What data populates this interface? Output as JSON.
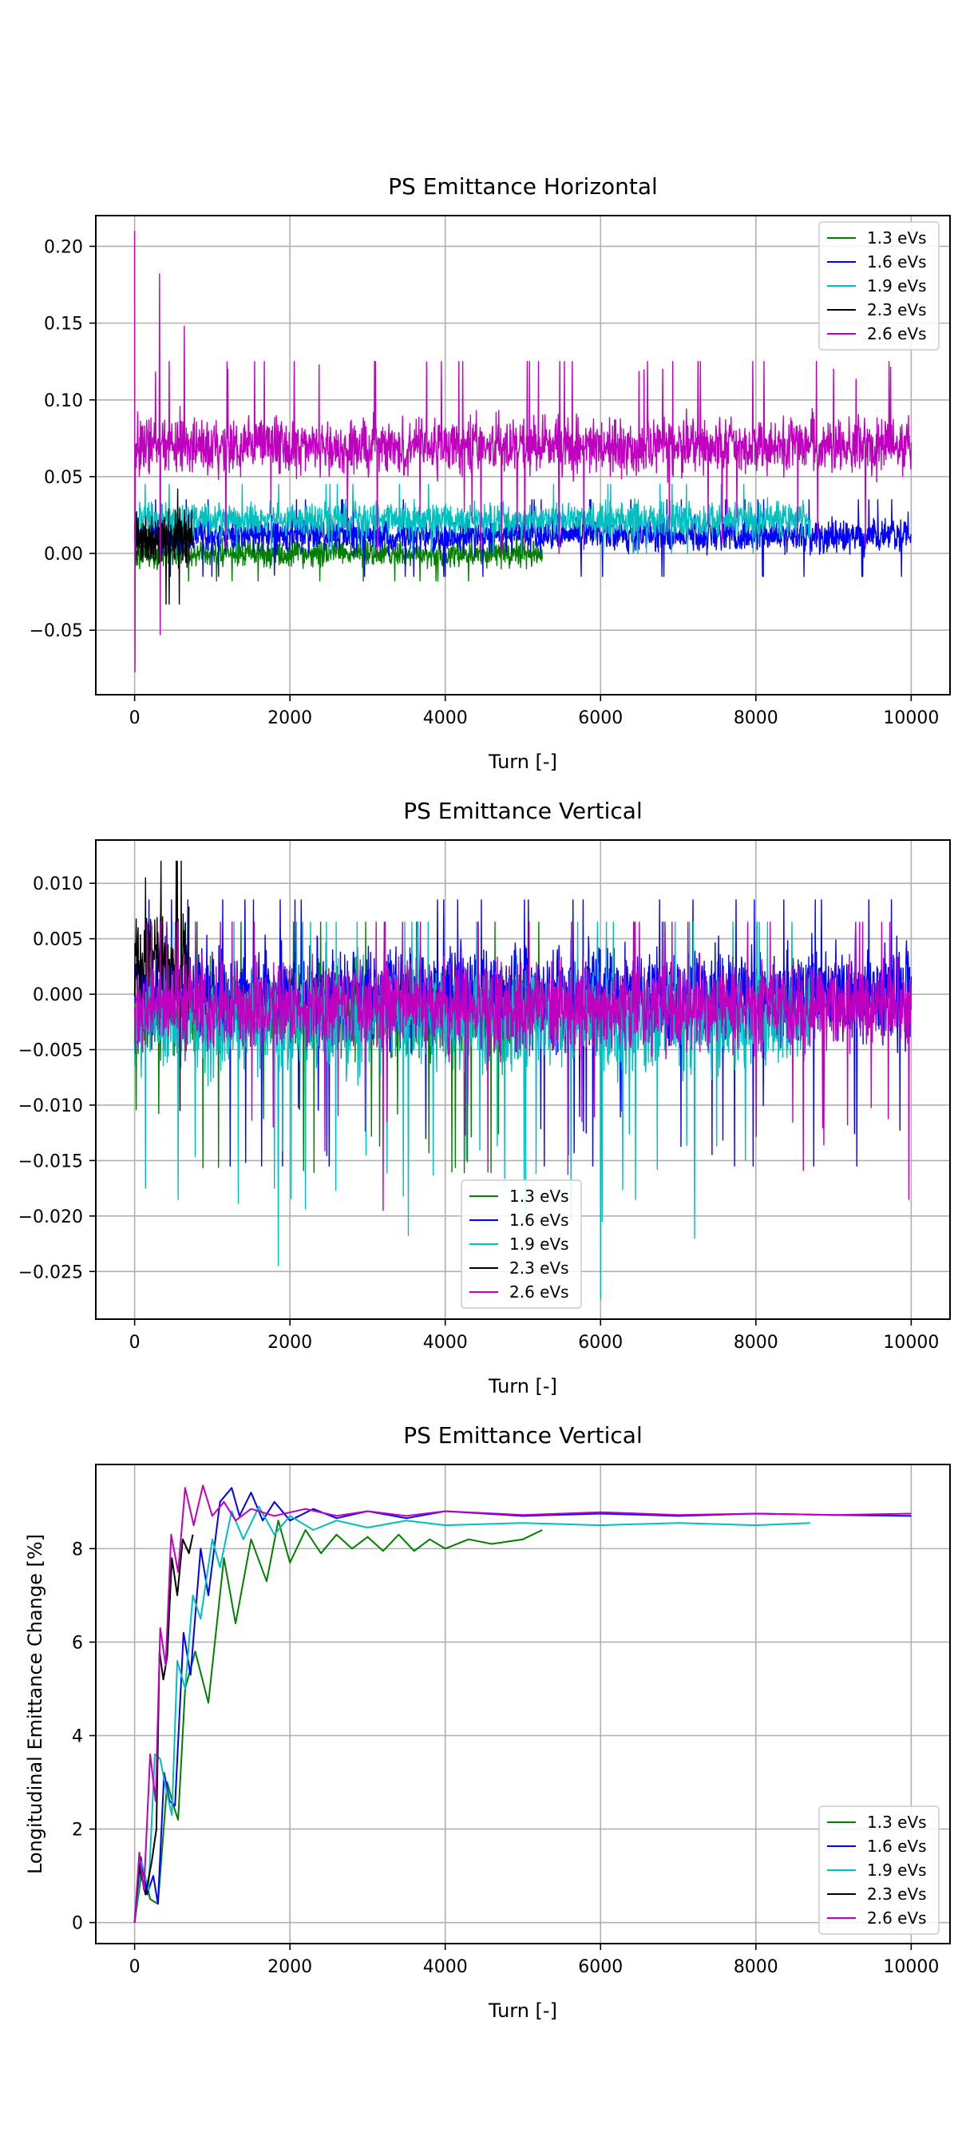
{
  "chart_data": [
    {
      "type": "line",
      "title": "PS Emittance Horizontal",
      "xlabel": "Turn [-]",
      "ylabel": "",
      "xlim": [
        -500,
        10500
      ],
      "ylim": [
        -0.092,
        0.22
      ],
      "xticks": [
        0,
        2000,
        4000,
        6000,
        8000,
        10000
      ],
      "xtick_labels": [
        "0",
        "2000",
        "4000",
        "6000",
        "8000",
        "10000"
      ],
      "yticks": [
        -0.05,
        0.0,
        0.05,
        0.1,
        0.15,
        0.2
      ],
      "ytick_labels": [
        "−0.05",
        "0.00",
        "0.05",
        "0.10",
        "0.15",
        "0.20"
      ],
      "grid": true,
      "legend_position": "top-right",
      "series": [
        {
          "name": "1.3 eVs",
          "color": "#008000",
          "x_end": 5250,
          "noise": {
            "baseline": 0.0,
            "amplitude": 0.008,
            "min": -0.018,
            "max": 0.025
          }
        },
        {
          "name": "1.6 eVs",
          "color": "#0000ff",
          "x_end": 10000,
          "noise": {
            "baseline": 0.012,
            "amplitude": 0.01,
            "min": -0.015,
            "max": 0.035
          }
        },
        {
          "name": "1.9 eVs",
          "color": "#00bfbf",
          "x_end": 8700,
          "noise": {
            "baseline": 0.022,
            "amplitude": 0.01,
            "min": 0.0,
            "max": 0.045
          }
        },
        {
          "name": "2.3 eVs",
          "color": "#000000",
          "x_end": 750,
          "noise": {
            "baseline": 0.01,
            "amplitude": 0.018,
            "min": -0.033,
            "max": 0.042
          }
        },
        {
          "name": "2.6 eVs",
          "color": "#bf00bf",
          "x_end": 10000,
          "noise": {
            "baseline": 0.07,
            "amplitude": 0.017,
            "min": 0.0,
            "max": 0.125
          },
          "peaks": [
            [
              0,
              0.21
            ],
            [
              5,
              -0.077
            ],
            [
              320,
              0.182
            ],
            [
              330,
              -0.053
            ],
            [
              640,
              0.148
            ],
            [
              1200,
              0.12
            ],
            [
              3100,
              0.125
            ],
            [
              5200,
              0.125
            ],
            [
              6800,
              0.12
            ],
            [
              9000,
              0.12
            ]
          ]
        }
      ]
    },
    {
      "type": "line",
      "title": "PS Emittance Vertical",
      "xlabel": "Turn [-]",
      "ylabel": "",
      "xlim": [
        -500,
        10500
      ],
      "ylim": [
        -0.0293,
        0.0139
      ],
      "xticks": [
        0,
        2000,
        4000,
        6000,
        8000,
        10000
      ],
      "xtick_labels": [
        "0",
        "2000",
        "4000",
        "6000",
        "8000",
        "10000"
      ],
      "yticks": [
        -0.025,
        -0.02,
        -0.015,
        -0.01,
        -0.005,
        0.0,
        0.005,
        0.01
      ],
      "ytick_labels": [
        "−0.025",
        "−0.020",
        "−0.015",
        "−0.010",
        "−0.005",
        "0.000",
        "0.005",
        "0.010"
      ],
      "grid": true,
      "legend_position": "lower-center",
      "series": [
        {
          "name": "1.3 eVs",
          "color": "#008000",
          "x_end": 5250,
          "noise": {
            "baseline": -0.0015,
            "amplitude": 0.0035,
            "min": -0.0165,
            "max": 0.0065
          }
        },
        {
          "name": "1.6 eVs",
          "color": "#0000ff",
          "x_end": 10000,
          "noise": {
            "baseline": 0.0,
            "amplitude": 0.004,
            "min": -0.0155,
            "max": 0.0085
          }
        },
        {
          "name": "1.9 eVs",
          "color": "#00bfbf",
          "x_end": 8700,
          "noise": {
            "baseline": -0.0025,
            "amplitude": 0.004,
            "min": -0.0275,
            "max": 0.0065
          },
          "peaks": [
            [
              1850,
              -0.0245
            ],
            [
              6000,
              -0.0275
            ],
            [
              6020,
              -0.0205
            ],
            [
              140,
              -0.0175
            ],
            [
              560,
              -0.0185
            ],
            [
              6450,
              -0.0185
            ]
          ]
        },
        {
          "name": "2.3 eVs",
          "color": "#000000",
          "x_end": 700,
          "noise": {
            "baseline": 0.003,
            "amplitude": 0.004,
            "min": -0.016,
            "max": 0.012
          },
          "peaks": [
            [
              600,
              0.012
            ],
            [
              140,
              0.0105
            ]
          ]
        },
        {
          "name": "2.6 eVs",
          "color": "#bf00bf",
          "x_end": 10000,
          "noise": {
            "baseline": -0.001,
            "amplitude": 0.0035,
            "min": -0.0195,
            "max": 0.0065
          },
          "peaks": [
            [
              3200,
              -0.0195
            ],
            [
              9970,
              -0.0185
            ]
          ]
        }
      ]
    },
    {
      "type": "line",
      "title": "PS Emittance Vertical",
      "xlabel": "Turn [-]",
      "ylabel": "Longitudinal Emittance Change [%]",
      "xlim": [
        -500,
        10500
      ],
      "ylim": [
        -0.45,
        9.8
      ],
      "xticks": [
        0,
        2000,
        4000,
        6000,
        8000,
        10000
      ],
      "xtick_labels": [
        "0",
        "2000",
        "4000",
        "6000",
        "8000",
        "10000"
      ],
      "yticks": [
        0,
        2,
        4,
        6,
        8
      ],
      "ytick_labels": [
        "0",
        "2",
        "4",
        "6",
        "8"
      ],
      "grid": true,
      "legend_position": "lower-right",
      "series": [
        {
          "name": "1.3 eVs",
          "color": "#008000",
          "x_end": 5250,
          "points": [
            [
              0,
              0
            ],
            [
              100,
              1.2
            ],
            [
              200,
              0.5
            ],
            [
              300,
              0.4
            ],
            [
              420,
              3.0
            ],
            [
              500,
              2.5
            ],
            [
              560,
              2.2
            ],
            [
              650,
              5.0
            ],
            [
              780,
              5.8
            ],
            [
              950,
              4.7
            ],
            [
              1150,
              7.8
            ],
            [
              1300,
              6.4
            ],
            [
              1500,
              8.2
            ],
            [
              1700,
              7.3
            ],
            [
              1850,
              8.6
            ],
            [
              2000,
              7.7
            ],
            [
              2200,
              8.4
            ],
            [
              2400,
              7.9
            ],
            [
              2600,
              8.3
            ],
            [
              2800,
              8.0
            ],
            [
              3000,
              8.25
            ],
            [
              3200,
              7.95
            ],
            [
              3400,
              8.3
            ],
            [
              3600,
              7.95
            ],
            [
              3800,
              8.2
            ],
            [
              4000,
              8.0
            ],
            [
              4300,
              8.2
            ],
            [
              4600,
              8.1
            ],
            [
              5000,
              8.2
            ],
            [
              5250,
              8.4
            ]
          ]
        },
        {
          "name": "1.6 eVs",
          "color": "#0000ff",
          "x_end": 10000,
          "points": [
            [
              0,
              0
            ],
            [
              80,
              1.4
            ],
            [
              160,
              0.6
            ],
            [
              240,
              1.0
            ],
            [
              300,
              0.4
            ],
            [
              380,
              3.2
            ],
            [
              450,
              2.6
            ],
            [
              520,
              2.5
            ],
            [
              630,
              6.2
            ],
            [
              720,
              5.3
            ],
            [
              850,
              8.0
            ],
            [
              950,
              7.0
            ],
            [
              1100,
              9.0
            ],
            [
              1250,
              9.3
            ],
            [
              1350,
              8.7
            ],
            [
              1500,
              9.2
            ],
            [
              1650,
              8.6
            ],
            [
              1800,
              9.0
            ],
            [
              2000,
              8.6
            ],
            [
              2300,
              8.85
            ],
            [
              2600,
              8.65
            ],
            [
              3000,
              8.8
            ],
            [
              3500,
              8.65
            ],
            [
              4000,
              8.8
            ],
            [
              5000,
              8.7
            ],
            [
              6000,
              8.75
            ],
            [
              7000,
              8.7
            ],
            [
              8000,
              8.75
            ],
            [
              9000,
              8.72
            ],
            [
              10000,
              8.7
            ]
          ]
        },
        {
          "name": "1.9 eVs",
          "color": "#00bfbf",
          "x_end": 8700,
          "points": [
            [
              0,
              0
            ],
            [
              90,
              1.3
            ],
            [
              180,
              0.7
            ],
            [
              260,
              3.6
            ],
            [
              330,
              3.5
            ],
            [
              400,
              2.9
            ],
            [
              480,
              2.3
            ],
            [
              550,
              5.6
            ],
            [
              650,
              5.0
            ],
            [
              750,
              7.0
            ],
            [
              850,
              6.5
            ],
            [
              1000,
              8.2
            ],
            [
              1100,
              7.6
            ],
            [
              1250,
              8.8
            ],
            [
              1400,
              8.2
            ],
            [
              1600,
              8.9
            ],
            [
              1800,
              8.3
            ],
            [
              2000,
              8.7
            ],
            [
              2300,
              8.4
            ],
            [
              2600,
              8.6
            ],
            [
              3000,
              8.45
            ],
            [
              3500,
              8.6
            ],
            [
              4000,
              8.5
            ],
            [
              5000,
              8.55
            ],
            [
              6000,
              8.5
            ],
            [
              7000,
              8.55
            ],
            [
              8000,
              8.5
            ],
            [
              8700,
              8.55
            ]
          ]
        },
        {
          "name": "2.3 eVs",
          "color": "#000000",
          "x_end": 750,
          "points": [
            [
              0,
              0
            ],
            [
              60,
              1.2
            ],
            [
              140,
              0.6
            ],
            [
              220,
              1.3
            ],
            [
              280,
              2.0
            ],
            [
              320,
              5.8
            ],
            [
              370,
              5.2
            ],
            [
              420,
              5.7
            ],
            [
              480,
              7.8
            ],
            [
              550,
              7.0
            ],
            [
              620,
              8.2
            ],
            [
              700,
              7.9
            ],
            [
              750,
              8.3
            ]
          ]
        },
        {
          "name": "2.6 eVs",
          "color": "#bf00bf",
          "x_end": 10000,
          "points": [
            [
              0,
              0
            ],
            [
              60,
              1.5
            ],
            [
              120,
              0.7
            ],
            [
              200,
              3.6
            ],
            [
              270,
              2.6
            ],
            [
              330,
              6.3
            ],
            [
              400,
              5.5
            ],
            [
              470,
              8.3
            ],
            [
              560,
              7.5
            ],
            [
              650,
              9.3
            ],
            [
              760,
              8.5
            ],
            [
              880,
              9.35
            ],
            [
              1000,
              8.7
            ],
            [
              1150,
              9.0
            ],
            [
              1300,
              8.6
            ],
            [
              1500,
              8.85
            ],
            [
              1800,
              8.7
            ],
            [
              2200,
              8.85
            ],
            [
              2600,
              8.7
            ],
            [
              3000,
              8.8
            ],
            [
              3500,
              8.7
            ],
            [
              4000,
              8.8
            ],
            [
              5000,
              8.72
            ],
            [
              6000,
              8.78
            ],
            [
              7000,
              8.72
            ],
            [
              8000,
              8.75
            ],
            [
              9000,
              8.72
            ],
            [
              10000,
              8.75
            ]
          ]
        }
      ]
    }
  ]
}
